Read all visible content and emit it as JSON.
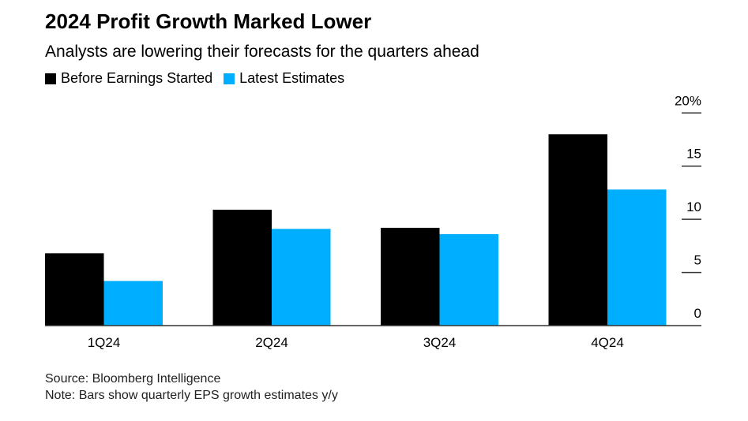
{
  "chart_data": {
    "type": "bar",
    "title": "2024 Profit Growth Marked Lower",
    "subtitle": "Analysts are lowering their forecasts for the quarters ahead",
    "categories": [
      "1Q24",
      "2Q24",
      "3Q24",
      "4Q24"
    ],
    "series": [
      {
        "name": "Before Earnings Started",
        "color": "#000000",
        "values": [
          6.8,
          10.9,
          9.2,
          18.0
        ]
      },
      {
        "name": "Latest Estimates",
        "color": "#00AEFF",
        "values": [
          4.2,
          9.1,
          8.6,
          12.8
        ]
      }
    ],
    "ylim": [
      0,
      20
    ],
    "yticks": [
      0,
      5,
      10,
      15,
      20
    ],
    "ytick_labels": [
      "0",
      "5",
      "10",
      "15",
      "20%"
    ],
    "y_axis_position": "right",
    "grid": false,
    "legend": "top-left",
    "source": "Source: Bloomberg Intelligence",
    "note": "Note: Bars show quarterly EPS growth estimates y/y"
  }
}
